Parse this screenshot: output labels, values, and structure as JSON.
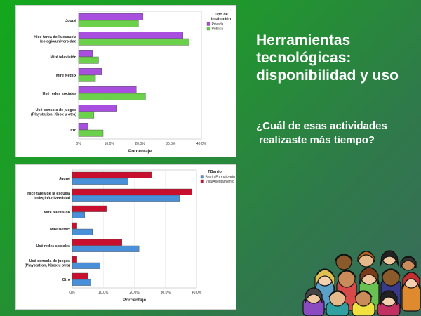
{
  "slide": {
    "title_lines": [
      "Herramientas",
      "tecnológicas:",
      "disponibilidad y uso"
    ],
    "question_lines": [
      "¿Cuál de esas actividades",
      "realizaste más tiempo?"
    ]
  },
  "chart_data": [
    {
      "type": "bar",
      "orientation": "horizontal",
      "categories": [
        [
          "Jugué"
        ],
        [
          "Hice tarea de la escuela",
          "/colegio/universidad"
        ],
        [
          "Miré televisión"
        ],
        [
          "Miré Netflix"
        ],
        [
          "Usé redes sociales"
        ],
        [
          "Usé consola de juegos",
          "(Playstation, Xbox u otra)"
        ],
        [
          "Otro"
        ]
      ],
      "series": [
        {
          "name": "Privada",
          "color": "#a84fe0",
          "values": [
            21.0,
            34.0,
            4.5,
            7.5,
            18.8,
            12.5,
            3.0
          ]
        },
        {
          "name": "Pública",
          "color": "#6cd14a",
          "values": [
            19.5,
            36.0,
            6.5,
            5.5,
            21.8,
            5.0,
            8.0
          ]
        }
      ],
      "xlabel": "Porcentaje",
      "xticks": [
        "0%",
        "10,0%",
        "20,0%",
        "30,0%",
        "40,0%"
      ],
      "xlim": [
        0,
        40
      ],
      "legend_title": [
        "Tipo de",
        "Institución"
      ],
      "legend": "top-right"
    },
    {
      "type": "bar",
      "orientation": "horizontal",
      "categories": [
        [
          "Jugué"
        ],
        [
          "Hice tarea de la escuela",
          "/colegio/universidad"
        ],
        [
          "Miré televisión"
        ],
        [
          "Miré Netflix"
        ],
        [
          "Usé redes sociales"
        ],
        [
          "Usé consola de juegos",
          "(Playstation, Xbox u otra)"
        ],
        [
          "Otro"
        ]
      ],
      "series": [
        {
          "name": "Villa/Asentamiento",
          "color": "#c8102e",
          "values": [
            25.5,
            38.5,
            11.0,
            1.5,
            16.0,
            1.5,
            5.0
          ]
        },
        {
          "name": "Barrio Formalizado",
          "color": "#4a90d9",
          "values": [
            18.0,
            34.5,
            4.0,
            6.5,
            21.5,
            9.0,
            6.0
          ]
        }
      ],
      "xlabel": "Porcentaje",
      "xticks": [
        "0%",
        "10,0%",
        "20,0%",
        "30,0%",
        "40,0%"
      ],
      "xlim": [
        0,
        40
      ],
      "legend_title": [
        "TBarrio"
      ],
      "legend": "top-right"
    }
  ]
}
